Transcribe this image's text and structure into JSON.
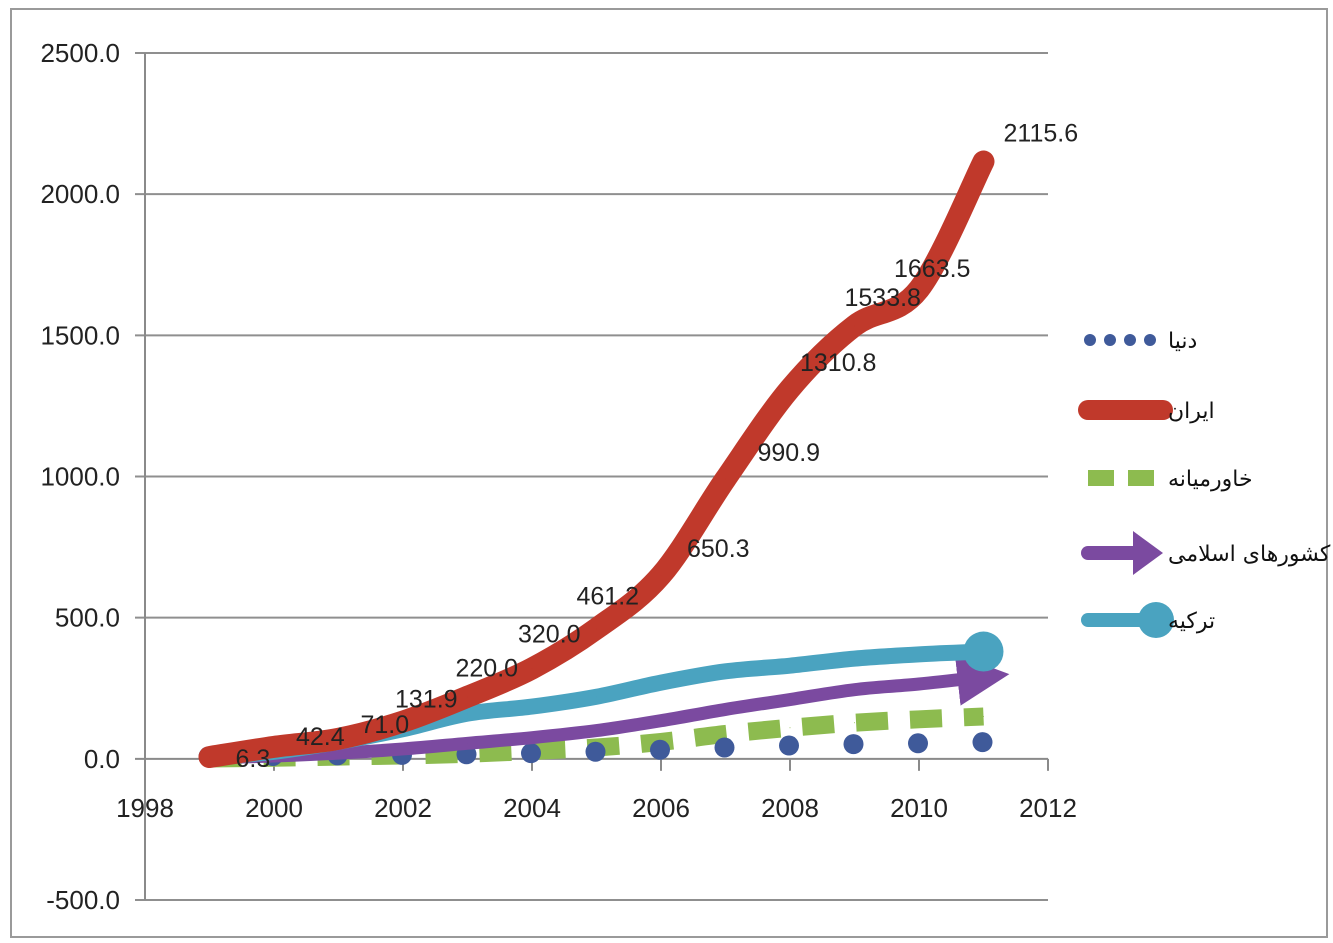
{
  "chart_data": {
    "type": "line",
    "title": "",
    "xlabel": "",
    "ylabel": "",
    "xlim": [
      1998,
      2012
    ],
    "ylim": [
      -500,
      2500
    ],
    "x_ticks": [
      "1998",
      "2000",
      "2002",
      "2004",
      "2006",
      "2008",
      "2010",
      "2012"
    ],
    "y_ticks": [
      "2500.0",
      "2000.0",
      "1500.0",
      "1000.0",
      "500.0",
      "0.0",
      "-500.0"
    ],
    "grid": "horizontal",
    "legend_position": "right",
    "x": [
      1999,
      2000,
      2001,
      2002,
      2003,
      2004,
      2005,
      2006,
      2007,
      2008,
      2009,
      2010,
      2011
    ],
    "series": [
      {
        "name": "دنیا",
        "color": "#3f5a9a",
        "style": "dotted",
        "values": [
          1,
          3,
          5,
          7,
          9,
          13,
          18,
          25,
          33,
          40,
          45,
          48,
          52
        ]
      },
      {
        "name": "ایران",
        "color": "#c0392b",
        "style": "solid",
        "values": [
          6.3,
          42.4,
          71.0,
          131.9,
          220.0,
          320.0,
          461.2,
          650.3,
          990.9,
          1310.8,
          1533.8,
          1663.5,
          2115.6
        ],
        "data_labels": [
          "6.3",
          "42.4",
          "71.0",
          "131.9",
          "220.0",
          "320.0",
          "461.2",
          "650.3",
          "990.9",
          "1310.8",
          "1533.8",
          "1663.5",
          "2115.6"
        ]
      },
      {
        "name": "خاورمیانه",
        "color": "#8dbb4f",
        "style": "dashed",
        "values": [
          1,
          4,
          8,
          12,
          18,
          28,
          40,
          60,
          88,
          110,
          128,
          140,
          150
        ]
      },
      {
        "name": "کشورهای اسلامی",
        "color": "#7b4aa0",
        "style": "arrow",
        "values": [
          3,
          10,
          20,
          35,
          55,
          75,
          100,
          135,
          175,
          210,
          245,
          265,
          290
        ]
      },
      {
        "name": "ترکیه",
        "color": "#4aa3c0",
        "style": "circle-end",
        "values": [
          5,
          25,
          60,
          105,
          160,
          185,
          220,
          270,
          310,
          330,
          355,
          370,
          380
        ]
      }
    ]
  }
}
